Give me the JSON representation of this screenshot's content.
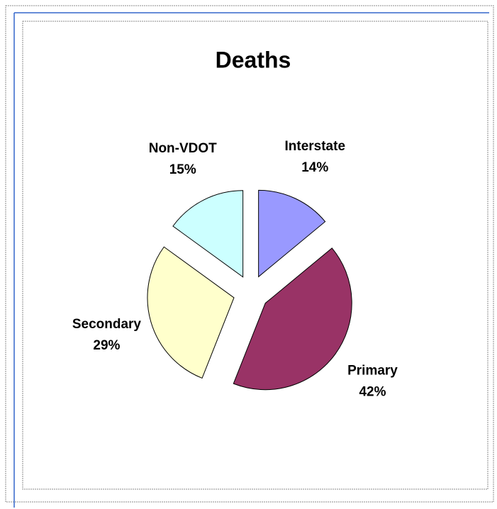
{
  "chart_data": {
    "type": "pie",
    "title": "Deaths",
    "categories": [
      "Interstate",
      "Primary",
      "Secondary",
      "Non-VDOT"
    ],
    "values": [
      14,
      42,
      29,
      15
    ],
    "value_labels": [
      "14%",
      "42%",
      "29%",
      "15%"
    ],
    "colors": [
      "#9999ff",
      "#993366",
      "#ffffcc",
      "#ccffff"
    ]
  }
}
